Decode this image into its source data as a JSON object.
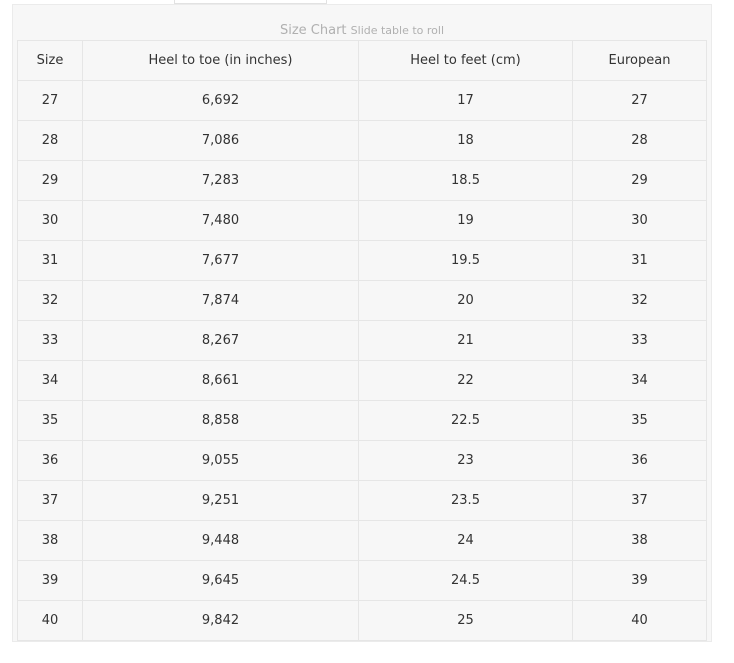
{
  "caption": {
    "title": "Size Chart",
    "subtitle": "Slide table to roll"
  },
  "columns": [
    "Size",
    "Heel to toe (in inches)",
    "Heel to feet (cm)",
    "European"
  ],
  "rows": [
    [
      "27",
      "6,692",
      "17",
      "27"
    ],
    [
      "28",
      "7,086",
      "18",
      "28"
    ],
    [
      "29",
      "7,283",
      "18.5",
      "29"
    ],
    [
      "30",
      "7,480",
      "19",
      "30"
    ],
    [
      "31",
      "7,677",
      "19.5",
      "31"
    ],
    [
      "32",
      "7,874",
      "20",
      "32"
    ],
    [
      "33",
      "8,267",
      "21",
      "33"
    ],
    [
      "34",
      "8,661",
      "22",
      "34"
    ],
    [
      "35",
      "8,858",
      "22.5",
      "35"
    ],
    [
      "36",
      "9,055",
      "23",
      "36"
    ],
    [
      "37",
      "9,251",
      "23.5",
      "37"
    ],
    [
      "38",
      "9,448",
      "24",
      "38"
    ],
    [
      "39",
      "9,645",
      "24.5",
      "39"
    ],
    [
      "40",
      "9,842",
      "25",
      "40"
    ]
  ]
}
